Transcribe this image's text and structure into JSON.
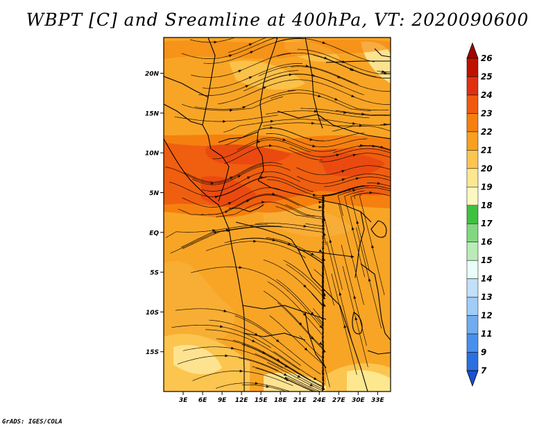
{
  "title": "WBPT [C] and Sreamline at 400hPa, VT: 2020090600",
  "footer": "GrADS: IGES/COLA",
  "map": {
    "variable": "WBPT",
    "units": "C",
    "level": "400hPa",
    "valid_time": "2020090600",
    "lat_labels": [
      "20N",
      "15N",
      "10N",
      "5N",
      "EQ",
      "5S",
      "10S",
      "15S"
    ],
    "lon_labels": [
      "3E",
      "6E",
      "9E",
      "12E",
      "15E",
      "18E",
      "21E",
      "24E",
      "27E",
      "30E",
      "33E"
    ],
    "lat_values": [
      20,
      15,
      10,
      5,
      0,
      -5,
      -10,
      -15
    ],
    "lon_values": [
      3,
      6,
      9,
      12,
      15,
      18,
      21,
      24,
      27,
      30,
      33
    ],
    "lat_range": [
      -20,
      24.5
    ],
    "lon_range": [
      0,
      35
    ]
  },
  "colorbar": {
    "labels": [
      "26",
      "25",
      "24",
      "23",
      "22",
      "21",
      "20",
      "19",
      "18",
      "17",
      "16",
      "15",
      "14",
      "13",
      "12",
      "11",
      "9",
      "7"
    ],
    "colors": [
      "#a00000",
      "#c01000",
      "#e03010",
      "#f05a10",
      "#f5800f",
      "#f8a020",
      "#fcc550",
      "#fde890",
      "#fef8c0",
      "#40c040",
      "#80d880",
      "#b8ecb8",
      "#e8fff8",
      "#c0e0fc",
      "#a0ccf8",
      "#70acf0",
      "#4890ec",
      "#2a70e0",
      "#1850d0"
    ]
  },
  "colors": {
    "background": "#ffffff",
    "frame": "#000000",
    "streamline": "#1a0d00"
  }
}
